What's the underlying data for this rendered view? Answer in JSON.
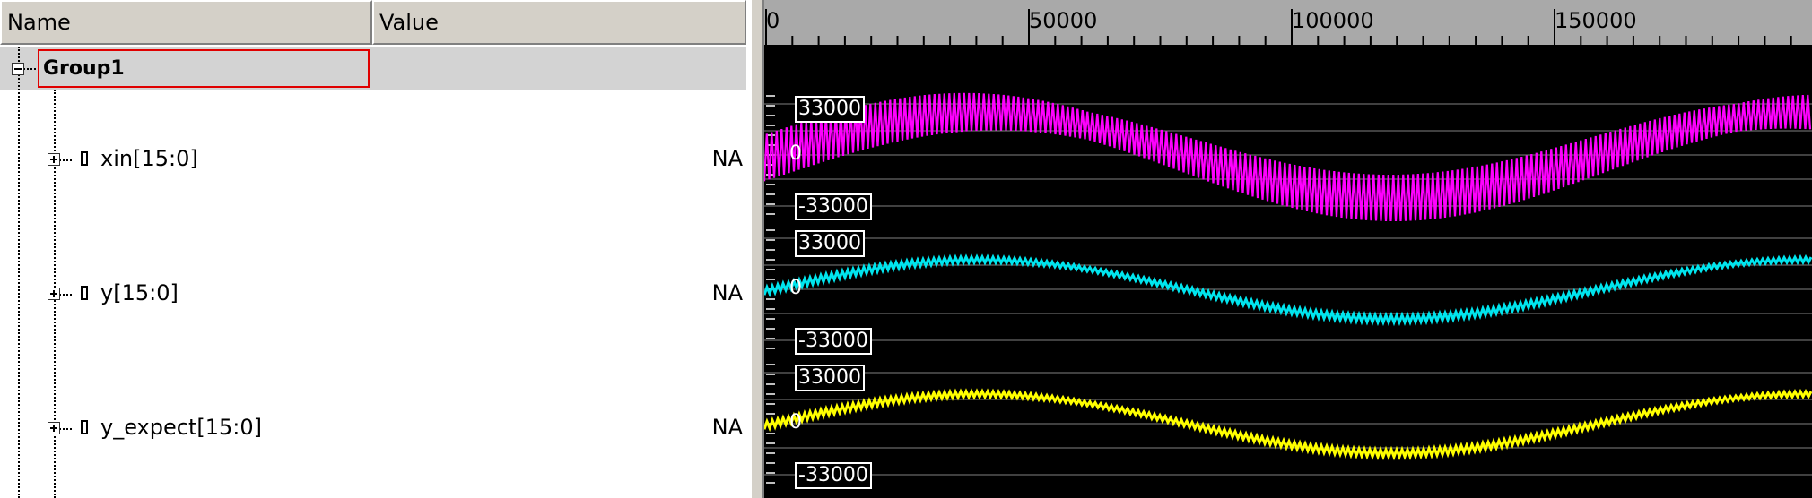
{
  "header": {
    "name_col": "Name",
    "value_col": "Value"
  },
  "group": {
    "name": "Group1",
    "expand_state": "collapse"
  },
  "signals": [
    {
      "name": "xin[15:0]",
      "value": "NA",
      "color": "#ff00ff",
      "max_label": "33000",
      "zero_label": "0",
      "min_label": "-33000"
    },
    {
      "name": "y[15:0]",
      "value": "NA",
      "color": "#00e5ee",
      "max_label": "33000",
      "zero_label": "0",
      "min_label": "-33000"
    },
    {
      "name": "y_expect[15:0]",
      "value": "NA",
      "color": "#ffff00",
      "max_label": "33000",
      "zero_label": "0",
      "min_label": "-33000"
    }
  ],
  "ruler": {
    "labels": [
      "0",
      "50000",
      "100000",
      "150000"
    ]
  },
  "colors": {
    "background": "#000000",
    "ruler": "#a9a9a9",
    "grid": "#808080",
    "selection_border": "#e00000"
  }
}
